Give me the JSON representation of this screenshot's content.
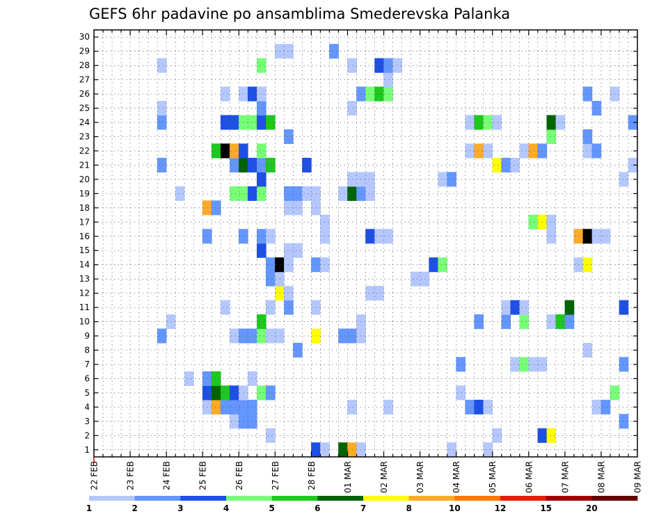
{
  "chart_data": {
    "type": "heatmap",
    "title": "GEFS 6hr padavine po ansamblima Smederevska Palanka",
    "y_categories": [
      "1",
      "2",
      "3",
      "4",
      "5",
      "6",
      "7",
      "8",
      "9",
      "10",
      "11",
      "12",
      "13",
      "14",
      "15",
      "16",
      "17",
      "18",
      "19",
      "20",
      "21",
      "22",
      "23",
      "24",
      "25",
      "26",
      "27",
      "28",
      "29",
      "30"
    ],
    "x_tick_labels": [
      "22 FEB",
      "23 FEB",
      "24 FEB",
      "25 FEB",
      "26 FEB",
      "27 FEB",
      "28 FEB",
      "01 MAR",
      "02 MAR",
      "03 MAR",
      "04 MAR",
      "05 MAR",
      "06 MAR",
      "07 MAR",
      "08 MAR",
      "09 MAR"
    ],
    "steps_per_day": 4,
    "xlim": [
      0,
      60
    ],
    "ylim": [
      0.5,
      30.5
    ],
    "grid": true,
    "color_scale": {
      "bounds": [
        "1",
        "2",
        "3",
        "4",
        "5",
        "6",
        "7",
        "8",
        "10",
        "12",
        "15",
        "20"
      ],
      "colors": [
        "#b4c8ff",
        "#6496ff",
        "#1e50e6",
        "#78ff78",
        "#1ec81e",
        "#006400",
        "#ffff00",
        "#ffaa28",
        "#ff7800",
        "#e61e00",
        "#a00000",
        "#640000"
      ]
    },
    "cells": [
      {
        "x": 25,
        "y": 1,
        "v": 3
      },
      {
        "x": 26,
        "y": 1,
        "v": 1
      },
      {
        "x": 28,
        "y": 1,
        "v": 6
      },
      {
        "x": 29,
        "y": 1,
        "v": 8
      },
      {
        "x": 30,
        "y": 1,
        "v": 1
      },
      {
        "x": 40,
        "y": 1,
        "v": 1
      },
      {
        "x": 44,
        "y": 1,
        "v": 1
      },
      {
        "x": 20,
        "y": 2,
        "v": 1
      },
      {
        "x": 45,
        "y": 2,
        "v": 1
      },
      {
        "x": 50,
        "y": 2,
        "v": 3
      },
      {
        "x": 51,
        "y": 2,
        "v": 7
      },
      {
        "x": 16,
        "y": 3,
        "v": 1
      },
      {
        "x": 17,
        "y": 3,
        "v": 2
      },
      {
        "x": 18,
        "y": 3,
        "v": 2
      },
      {
        "x": 59,
        "y": 3,
        "v": 2
      },
      {
        "x": 13,
        "y": 4,
        "v": 1
      },
      {
        "x": 14,
        "y": 4,
        "v": 8
      },
      {
        "x": 15,
        "y": 4,
        "v": 2
      },
      {
        "x": 16,
        "y": 4,
        "v": 2
      },
      {
        "x": 17,
        "y": 4,
        "v": 2
      },
      {
        "x": 18,
        "y": 4,
        "v": 2
      },
      {
        "x": 29,
        "y": 4,
        "v": 1
      },
      {
        "x": 33,
        "y": 4,
        "v": 1
      },
      {
        "x": 42,
        "y": 4,
        "v": 2
      },
      {
        "x": 43,
        "y": 4,
        "v": 3
      },
      {
        "x": 44,
        "y": 4,
        "v": 1
      },
      {
        "x": 56,
        "y": 4,
        "v": 1
      },
      {
        "x": 57,
        "y": 4,
        "v": 2
      },
      {
        "x": 13,
        "y": 5,
        "v": 3
      },
      {
        "x": 14,
        "y": 5,
        "v": 6
      },
      {
        "x": 15,
        "y": 5,
        "v": 5
      },
      {
        "x": 16,
        "y": 5,
        "v": 3
      },
      {
        "x": 17,
        "y": 5,
        "v": 1
      },
      {
        "x": 19,
        "y": 5,
        "v": 4
      },
      {
        "x": 20,
        "y": 5,
        "v": 2
      },
      {
        "x": 41,
        "y": 5,
        "v": 1
      },
      {
        "x": 58,
        "y": 5,
        "v": 4
      },
      {
        "x": 11,
        "y": 6,
        "v": 1
      },
      {
        "x": 13,
        "y": 6,
        "v": 2
      },
      {
        "x": 14,
        "y": 6,
        "v": 5
      },
      {
        "x": 18,
        "y": 6,
        "v": 1
      },
      {
        "x": 41,
        "y": 7,
        "v": 2
      },
      {
        "x": 47,
        "y": 7,
        "v": 1
      },
      {
        "x": 48,
        "y": 7,
        "v": 4
      },
      {
        "x": 49,
        "y": 7,
        "v": 1
      },
      {
        "x": 50,
        "y": 7,
        "v": 1
      },
      {
        "x": 59,
        "y": 7,
        "v": 2
      },
      {
        "x": 23,
        "y": 8,
        "v": 2
      },
      {
        "x": 55,
        "y": 8,
        "v": 1
      },
      {
        "x": 8,
        "y": 9,
        "v": 2
      },
      {
        "x": 16,
        "y": 9,
        "v": 1
      },
      {
        "x": 17,
        "y": 9,
        "v": 2
      },
      {
        "x": 18,
        "y": 9,
        "v": 2
      },
      {
        "x": 19,
        "y": 9,
        "v": 4
      },
      {
        "x": 20,
        "y": 9,
        "v": 1
      },
      {
        "x": 21,
        "y": 9,
        "v": 1
      },
      {
        "x": 25,
        "y": 9,
        "v": 7
      },
      {
        "x": 28,
        "y": 9,
        "v": 2
      },
      {
        "x": 29,
        "y": 9,
        "v": 2
      },
      {
        "x": 30,
        "y": 9,
        "v": 1
      },
      {
        "x": 9,
        "y": 10,
        "v": 1
      },
      {
        "x": 19,
        "y": 10,
        "v": 5
      },
      {
        "x": 30,
        "y": 10,
        "v": 1
      },
      {
        "x": 43,
        "y": 10,
        "v": 2
      },
      {
        "x": 46,
        "y": 10,
        "v": 2
      },
      {
        "x": 48,
        "y": 10,
        "v": 4
      },
      {
        "x": 51,
        "y": 10,
        "v": 1
      },
      {
        "x": 52,
        "y": 10,
        "v": 5
      },
      {
        "x": 53,
        "y": 10,
        "v": 2
      },
      {
        "x": 15,
        "y": 11,
        "v": 1
      },
      {
        "x": 20,
        "y": 11,
        "v": 1
      },
      {
        "x": 22,
        "y": 11,
        "v": 2
      },
      {
        "x": 25,
        "y": 11,
        "v": 1
      },
      {
        "x": 46,
        "y": 11,
        "v": 1
      },
      {
        "x": 47,
        "y": 11,
        "v": 3
      },
      {
        "x": 48,
        "y": 11,
        "v": 1
      },
      {
        "x": 53,
        "y": 11,
        "v": 6
      },
      {
        "x": 59,
        "y": 11,
        "v": 3
      },
      {
        "x": 21,
        "y": 12,
        "v": 7
      },
      {
        "x": 22,
        "y": 12,
        "v": 1
      },
      {
        "x": 31,
        "y": 12,
        "v": 1
      },
      {
        "x": 32,
        "y": 12,
        "v": 1
      },
      {
        "x": 20,
        "y": 13,
        "v": 2
      },
      {
        "x": 21,
        "y": 13,
        "v": 1
      },
      {
        "x": 36,
        "y": 13,
        "v": 1
      },
      {
        "x": 37,
        "y": 13,
        "v": 1
      },
      {
        "x": 20,
        "y": 14,
        "v": 2
      },
      {
        "x": 21,
        "y": 14,
        "v": 15
      },
      {
        "x": 22,
        "y": 14,
        "v": 1
      },
      {
        "x": 25,
        "y": 14,
        "v": 2
      },
      {
        "x": 26,
        "y": 14,
        "v": 1
      },
      {
        "x": 38,
        "y": 14,
        "v": 3
      },
      {
        "x": 39,
        "y": 14,
        "v": 4
      },
      {
        "x": 54,
        "y": 14,
        "v": 1
      },
      {
        "x": 55,
        "y": 14,
        "v": 7
      },
      {
        "x": 19,
        "y": 15,
        "v": 3
      },
      {
        "x": 22,
        "y": 15,
        "v": 1
      },
      {
        "x": 23,
        "y": 15,
        "v": 1
      },
      {
        "x": 13,
        "y": 16,
        "v": 2
      },
      {
        "x": 17,
        "y": 16,
        "v": 2
      },
      {
        "x": 19,
        "y": 16,
        "v": 2
      },
      {
        "x": 20,
        "y": 16,
        "v": 1
      },
      {
        "x": 26,
        "y": 16,
        "v": 1
      },
      {
        "x": 31,
        "y": 16,
        "v": 3
      },
      {
        "x": 32,
        "y": 16,
        "v": 1
      },
      {
        "x": 33,
        "y": 16,
        "v": 1
      },
      {
        "x": 51,
        "y": 16,
        "v": 1
      },
      {
        "x": 54,
        "y": 16,
        "v": 8
      },
      {
        "x": 55,
        "y": 16,
        "v": 15
      },
      {
        "x": 56,
        "y": 16,
        "v": 1
      },
      {
        "x": 57,
        "y": 16,
        "v": 1
      },
      {
        "x": 26,
        "y": 17,
        "v": 1
      },
      {
        "x": 49,
        "y": 17,
        "v": 4
      },
      {
        "x": 50,
        "y": 17,
        "v": 7
      },
      {
        "x": 51,
        "y": 17,
        "v": 1
      },
      {
        "x": 13,
        "y": 18,
        "v": 8
      },
      {
        "x": 14,
        "y": 18,
        "v": 2
      },
      {
        "x": 22,
        "y": 18,
        "v": 1
      },
      {
        "x": 23,
        "y": 18,
        "v": 1
      },
      {
        "x": 25,
        "y": 18,
        "v": 1
      },
      {
        "x": 10,
        "y": 19,
        "v": 1
      },
      {
        "x": 16,
        "y": 19,
        "v": 4
      },
      {
        "x": 17,
        "y": 19,
        "v": 4
      },
      {
        "x": 18,
        "y": 19,
        "v": 3
      },
      {
        "x": 19,
        "y": 19,
        "v": 4
      },
      {
        "x": 22,
        "y": 19,
        "v": 2
      },
      {
        "x": 23,
        "y": 19,
        "v": 2
      },
      {
        "x": 24,
        "y": 19,
        "v": 1
      },
      {
        "x": 25,
        "y": 19,
        "v": 1
      },
      {
        "x": 28,
        "y": 19,
        "v": 1
      },
      {
        "x": 29,
        "y": 19,
        "v": 6
      },
      {
        "x": 30,
        "y": 19,
        "v": 2
      },
      {
        "x": 31,
        "y": 19,
        "v": 1
      },
      {
        "x": 19,
        "y": 20,
        "v": 3
      },
      {
        "x": 29,
        "y": 20,
        "v": 1
      },
      {
        "x": 30,
        "y": 20,
        "v": 1
      },
      {
        "x": 31,
        "y": 20,
        "v": 1
      },
      {
        "x": 39,
        "y": 20,
        "v": 1
      },
      {
        "x": 40,
        "y": 20,
        "v": 2
      },
      {
        "x": 59,
        "y": 20,
        "v": 1
      },
      {
        "x": 8,
        "y": 21,
        "v": 2
      },
      {
        "x": 16,
        "y": 21,
        "v": 2
      },
      {
        "x": 17,
        "y": 21,
        "v": 6
      },
      {
        "x": 18,
        "y": 21,
        "v": 3
      },
      {
        "x": 19,
        "y": 21,
        "v": 2
      },
      {
        "x": 20,
        "y": 21,
        "v": 5
      },
      {
        "x": 24,
        "y": 21,
        "v": 3
      },
      {
        "x": 45,
        "y": 21,
        "v": 7
      },
      {
        "x": 46,
        "y": 21,
        "v": 2
      },
      {
        "x": 47,
        "y": 21,
        "v": 1
      },
      {
        "x": 60,
        "y": 21,
        "v": 1
      },
      {
        "x": 14,
        "y": 22,
        "v": 5
      },
      {
        "x": 15,
        "y": 22,
        "v": 15
      },
      {
        "x": 16,
        "y": 22,
        "v": 8
      },
      {
        "x": 17,
        "y": 22,
        "v": 3
      },
      {
        "x": 19,
        "y": 22,
        "v": 4
      },
      {
        "x": 42,
        "y": 22,
        "v": 1
      },
      {
        "x": 43,
        "y": 22,
        "v": 8
      },
      {
        "x": 44,
        "y": 22,
        "v": 1
      },
      {
        "x": 48,
        "y": 22,
        "v": 1
      },
      {
        "x": 49,
        "y": 22,
        "v": 8
      },
      {
        "x": 50,
        "y": 22,
        "v": 2
      },
      {
        "x": 55,
        "y": 22,
        "v": 1
      },
      {
        "x": 56,
        "y": 22,
        "v": 2
      },
      {
        "x": 22,
        "y": 23,
        "v": 2
      },
      {
        "x": 51,
        "y": 23,
        "v": 4
      },
      {
        "x": 55,
        "y": 23,
        "v": 2
      },
      {
        "x": 8,
        "y": 24,
        "v": 2
      },
      {
        "x": 15,
        "y": 24,
        "v": 3
      },
      {
        "x": 16,
        "y": 24,
        "v": 3
      },
      {
        "x": 17,
        "y": 24,
        "v": 4
      },
      {
        "x": 18,
        "y": 24,
        "v": 4
      },
      {
        "x": 19,
        "y": 24,
        "v": 3
      },
      {
        "x": 20,
        "y": 24,
        "v": 5
      },
      {
        "x": 42,
        "y": 24,
        "v": 1
      },
      {
        "x": 43,
        "y": 24,
        "v": 5
      },
      {
        "x": 44,
        "y": 24,
        "v": 4
      },
      {
        "x": 45,
        "y": 24,
        "v": 1
      },
      {
        "x": 51,
        "y": 24,
        "v": 6
      },
      {
        "x": 52,
        "y": 24,
        "v": 1
      },
      {
        "x": 60,
        "y": 24,
        "v": 2
      },
      {
        "x": 8,
        "y": 25,
        "v": 1
      },
      {
        "x": 19,
        "y": 25,
        "v": 2
      },
      {
        "x": 29,
        "y": 25,
        "v": 1
      },
      {
        "x": 56,
        "y": 25,
        "v": 2
      },
      {
        "x": 15,
        "y": 26,
        "v": 1
      },
      {
        "x": 17,
        "y": 26,
        "v": 1
      },
      {
        "x": 18,
        "y": 26,
        "v": 3
      },
      {
        "x": 19,
        "y": 26,
        "v": 1
      },
      {
        "x": 30,
        "y": 26,
        "v": 2
      },
      {
        "x": 31,
        "y": 26,
        "v": 4
      },
      {
        "x": 32,
        "y": 26,
        "v": 5
      },
      {
        "x": 33,
        "y": 26,
        "v": 4
      },
      {
        "x": 55,
        "y": 26,
        "v": 2
      },
      {
        "x": 58,
        "y": 26,
        "v": 1
      },
      {
        "x": 33,
        "y": 27,
        "v": 1
      },
      {
        "x": 8,
        "y": 28,
        "v": 1
      },
      {
        "x": 19,
        "y": 28,
        "v": 4
      },
      {
        "x": 29,
        "y": 28,
        "v": 1
      },
      {
        "x": 32,
        "y": 28,
        "v": 3
      },
      {
        "x": 33,
        "y": 28,
        "v": 2
      },
      {
        "x": 34,
        "y": 28,
        "v": 1
      },
      {
        "x": 21,
        "y": 29,
        "v": 1
      },
      {
        "x": 22,
        "y": 29,
        "v": 1
      },
      {
        "x": 27,
        "y": 29,
        "v": 2
      }
    ]
  }
}
